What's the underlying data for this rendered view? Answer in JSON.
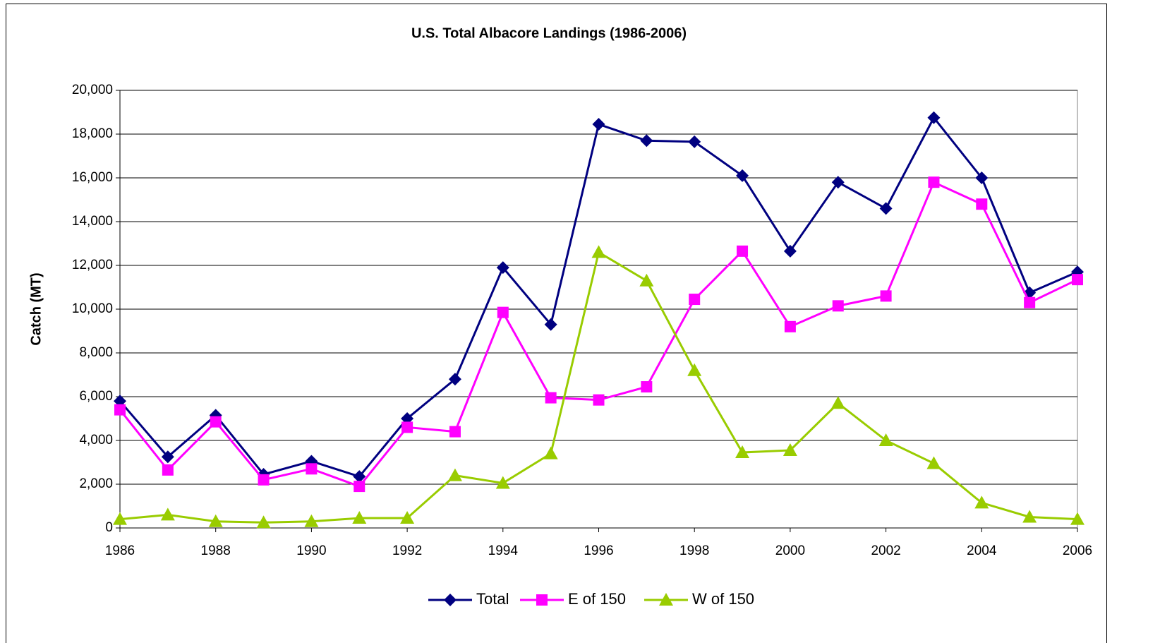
{
  "chart_data": {
    "type": "line",
    "title": "U.S. Total Albacore Landings (1986-2006)",
    "y_label": "Catch (MT)",
    "x": [
      1986,
      1987,
      1988,
      1989,
      1990,
      1991,
      1992,
      1993,
      1994,
      1995,
      1996,
      1997,
      1998,
      1999,
      2000,
      2001,
      2002,
      2003,
      2004,
      2005,
      2006
    ],
    "series": [
      {
        "name": "Total",
        "color": "#000080",
        "marker": "diamond",
        "values": [
          5800,
          3250,
          5150,
          2450,
          3050,
          2350,
          5000,
          6800,
          11900,
          9300,
          18450,
          17700,
          17650,
          16100,
          12650,
          15800,
          14600,
          18750,
          16000,
          10750,
          11700
        ]
      },
      {
        "name": "E of 150",
        "color": "#ff00ff",
        "marker": "square",
        "values": [
          5400,
          2650,
          4850,
          2200,
          2700,
          1900,
          4600,
          4400,
          9850,
          5950,
          5850,
          6450,
          10450,
          12650,
          9200,
          10150,
          10600,
          15800,
          14800,
          10300,
          11350
        ]
      },
      {
        "name": "W of 150",
        "color": "#99cc00",
        "marker": "triangle",
        "values": [
          400,
          600,
          300,
          250,
          300,
          450,
          450,
          2400,
          2050,
          3400,
          12600,
          11300,
          7200,
          3450,
          3550,
          5700,
          4000,
          2950,
          1150,
          500,
          400
        ]
      }
    ],
    "xlim": [
      1986,
      2006
    ],
    "xticks": [
      1986,
      1988,
      1990,
      1992,
      1994,
      1996,
      1998,
      2000,
      2002,
      2004,
      2006
    ],
    "ylim": [
      0,
      20000
    ],
    "yticks": [
      0,
      {
        "value": 2000,
        "label": "2,000"
      },
      {
        "value": 4000,
        "label": "4,000"
      },
      {
        "value": 6000,
        "label": "6,000"
      },
      {
        "value": 8000,
        "label": "8,000"
      },
      {
        "value": 10000,
        "label": "10,000"
      },
      {
        "value": 12000,
        "label": "12,000"
      },
      {
        "value": 14000,
        "label": "14,000"
      },
      {
        "value": 16000,
        "label": "16,000"
      },
      {
        "value": 18000,
        "label": "18,000"
      },
      {
        "value": 20000,
        "label": "20,000"
      }
    ],
    "grid": true,
    "legend": "bottom"
  }
}
